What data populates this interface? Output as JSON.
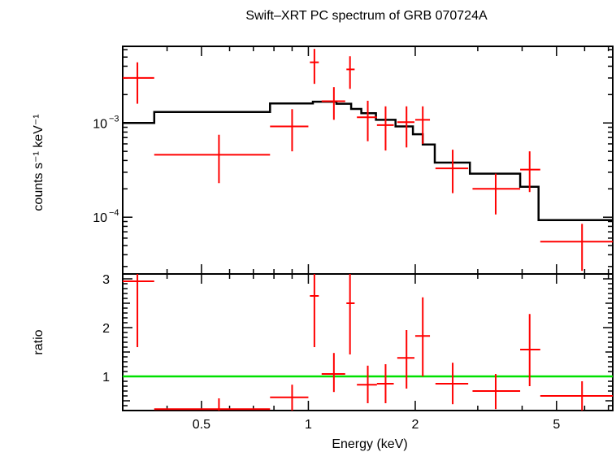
{
  "chart_data": [
    {
      "type": "scatter",
      "panel": "spectrum",
      "title": "Swift–XRT PC spectrum of GRB 070724A",
      "xlabel": "",
      "ylabel": "counts s⁻¹ keV⁻¹",
      "xscale": "log",
      "yscale": "log",
      "xlim": [
        0.3,
        7.2
      ],
      "ylim": [
        2.5e-05,
        0.0065
      ],
      "ytick_labels": [
        {
          "value": 0.001,
          "base": "10",
          "exp": "−3"
        },
        {
          "value": 0.0001,
          "base": "10",
          "exp": "−4"
        }
      ],
      "data_points": [
        {
          "x": 0.33,
          "xlo": 0.3,
          "xhi": 0.368,
          "y": 0.003,
          "ylo": 0.0016,
          "yhi": 0.0044
        },
        {
          "x": 0.56,
          "xlo": 0.368,
          "xhi": 0.78,
          "y": 0.00046,
          "ylo": 0.00023,
          "yhi": 0.00075
        },
        {
          "x": 0.9,
          "xlo": 0.78,
          "xhi": 1.0,
          "y": 0.00092,
          "ylo": 0.0005,
          "yhi": 0.0014
        },
        {
          "x": 1.04,
          "xlo": 1.01,
          "xhi": 1.07,
          "y": 0.0044,
          "ylo": 0.0026,
          "yhi": 0.0061
        },
        {
          "x": 1.18,
          "xlo": 1.09,
          "xhi": 1.27,
          "y": 0.0017,
          "ylo": 0.00108,
          "yhi": 0.0024
        },
        {
          "x": 1.31,
          "xlo": 1.28,
          "xhi": 1.35,
          "y": 0.0037,
          "ylo": 0.0023,
          "yhi": 0.0051
        },
        {
          "x": 1.47,
          "xlo": 1.37,
          "xhi": 1.56,
          "y": 0.00115,
          "ylo": 0.00064,
          "yhi": 0.00172
        },
        {
          "x": 1.65,
          "xlo": 1.56,
          "xhi": 1.74,
          "y": 0.00095,
          "ylo": 0.00051,
          "yhi": 0.0015
        },
        {
          "x": 1.89,
          "xlo": 1.78,
          "xhi": 1.99,
          "y": 0.00102,
          "ylo": 0.00055,
          "yhi": 0.0015
        },
        {
          "x": 2.1,
          "xlo": 2.0,
          "xhi": 2.2,
          "y": 0.00108,
          "ylo": 0.0006,
          "yhi": 0.0015
        },
        {
          "x": 2.55,
          "xlo": 2.28,
          "xhi": 2.82,
          "y": 0.00033,
          "ylo": 0.00018,
          "yhi": 0.00052
        },
        {
          "x": 3.37,
          "xlo": 2.9,
          "xhi": 3.95,
          "y": 0.0002,
          "ylo": 0.000107,
          "yhi": 0.00029
        },
        {
          "x": 4.2,
          "xlo": 3.95,
          "xhi": 4.5,
          "y": 0.00032,
          "ylo": 0.000185,
          "yhi": 0.0005
        },
        {
          "x": 5.9,
          "xlo": 4.5,
          "xhi": 7.2,
          "y": 5.5e-05,
          "ylo": 2.7e-05,
          "yhi": 8.5e-05
        }
      ],
      "model_steps": [
        {
          "xlo": 0.3,
          "xhi": 0.368,
          "y": 0.001
        },
        {
          "xlo": 0.368,
          "xhi": 0.78,
          "y": 0.00131
        },
        {
          "xlo": 0.78,
          "xhi": 1.03,
          "y": 0.00161
        },
        {
          "xlo": 1.03,
          "xhi": 1.2,
          "y": 0.00168
        },
        {
          "xlo": 1.2,
          "xhi": 1.32,
          "y": 0.0016
        },
        {
          "xlo": 1.32,
          "xhi": 1.41,
          "y": 0.00141
        },
        {
          "xlo": 1.41,
          "xhi": 1.55,
          "y": 0.00127
        },
        {
          "xlo": 1.55,
          "xhi": 1.76,
          "y": 0.00108
        },
        {
          "xlo": 1.76,
          "xhi": 1.97,
          "y": 0.00092
        },
        {
          "xlo": 1.97,
          "xhi": 2.1,
          "y": 0.00076
        },
        {
          "xlo": 2.1,
          "xhi": 2.27,
          "y": 0.00059
        },
        {
          "xlo": 2.27,
          "xhi": 2.85,
          "y": 0.00038
        },
        {
          "xlo": 2.85,
          "xhi": 3.95,
          "y": 0.00029
        },
        {
          "xlo": 3.95,
          "xhi": 4.45,
          "y": 0.00021
        },
        {
          "xlo": 4.45,
          "xhi": 7.2,
          "y": 9.3e-05
        }
      ]
    },
    {
      "type": "scatter",
      "panel": "ratio",
      "title": "",
      "xlabel": "Energy (keV)",
      "ylabel": "ratio",
      "xscale": "log",
      "yscale": "linear",
      "xlim": [
        0.3,
        7.2
      ],
      "ylim": [
        0.3,
        3.1
      ],
      "xticks": [
        0.5,
        1,
        2,
        5
      ],
      "xtick_labels": [
        "0.5",
        "1",
        "2",
        "5"
      ],
      "yticks": [
        1,
        2,
        3
      ],
      "ytick_labels": [
        "1",
        "2",
        "3"
      ],
      "reference_line": {
        "y": 1,
        "color": "#00e000"
      },
      "data_points": [
        {
          "x": 0.33,
          "xlo": 0.3,
          "xhi": 0.368,
          "y": 2.95,
          "ylo": 1.6,
          "yhi": 3.1
        },
        {
          "x": 0.56,
          "xlo": 0.368,
          "xhi": 0.78,
          "y": 0.33,
          "ylo": 0.3,
          "yhi": 0.55
        },
        {
          "x": 0.9,
          "xlo": 0.78,
          "xhi": 1.0,
          "y": 0.57,
          "ylo": 0.3,
          "yhi": 0.83
        },
        {
          "x": 1.04,
          "xlo": 1.01,
          "xhi": 1.07,
          "y": 2.65,
          "ylo": 1.6,
          "yhi": 3.1
        },
        {
          "x": 1.18,
          "xlo": 1.09,
          "xhi": 1.27,
          "y": 1.05,
          "ylo": 0.68,
          "yhi": 1.48
        },
        {
          "x": 1.31,
          "xlo": 1.28,
          "xhi": 1.35,
          "y": 2.5,
          "ylo": 1.45,
          "yhi": 3.1
        },
        {
          "x": 1.47,
          "xlo": 1.37,
          "xhi": 1.56,
          "y": 0.83,
          "ylo": 0.45,
          "yhi": 1.22
        },
        {
          "x": 1.65,
          "xlo": 1.56,
          "xhi": 1.74,
          "y": 0.85,
          "ylo": 0.45,
          "yhi": 1.25
        },
        {
          "x": 1.89,
          "xlo": 1.78,
          "xhi": 1.99,
          "y": 1.38,
          "ylo": 0.75,
          "yhi": 1.95
        },
        {
          "x": 2.1,
          "xlo": 2.0,
          "xhi": 2.2,
          "y": 1.83,
          "ylo": 1.0,
          "yhi": 2.62
        },
        {
          "x": 2.55,
          "xlo": 2.28,
          "xhi": 2.82,
          "y": 0.85,
          "ylo": 0.43,
          "yhi": 1.28
        },
        {
          "x": 3.37,
          "xlo": 2.9,
          "xhi": 3.95,
          "y": 0.7,
          "ylo": 0.33,
          "yhi": 1.05
        },
        {
          "x": 4.2,
          "xlo": 3.95,
          "xhi": 4.5,
          "y": 1.55,
          "ylo": 0.8,
          "yhi": 2.28
        },
        {
          "x": 5.9,
          "xlo": 4.5,
          "xhi": 7.2,
          "y": 0.6,
          "ylo": 0.3,
          "yhi": 0.9
        }
      ]
    }
  ],
  "colors": {
    "data": "#ff0000",
    "model": "#000000",
    "reference": "#00e000",
    "axes": "#000000"
  }
}
